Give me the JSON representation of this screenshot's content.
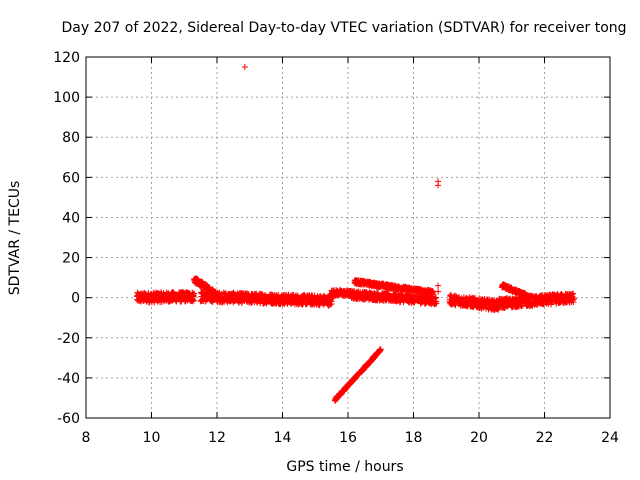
{
  "chart_data": {
    "type": "scatter",
    "title": "Day 207 of 2022, Sidereal Day-to-day VTEC variation (SDTVAR) for receiver tong",
    "xlabel": "GPS time / hours",
    "ylabel": "SDTVAR / TECUs",
    "xlim": [
      8,
      24
    ],
    "ylim": [
      -60,
      120
    ],
    "xticks": [
      8,
      10,
      12,
      14,
      16,
      18,
      20,
      22,
      24
    ],
    "yticks": [
      -60,
      -40,
      -20,
      0,
      20,
      40,
      60,
      80,
      100,
      120
    ],
    "grid": true,
    "marker": "+",
    "color": "#ff0000",
    "segments": [
      {
        "name": "band-1",
        "x_start": 9.55,
        "x_end": 11.3,
        "y_start": 0.0,
        "y_end": 0.5,
        "spread": 2.5
      },
      {
        "name": "spike-1",
        "x_start": 11.3,
        "x_end": 12.0,
        "y_start": 9.0,
        "y_end": 1.5,
        "spread": 1.5
      },
      {
        "name": "band-2",
        "x_start": 11.5,
        "x_end": 15.5,
        "y_start": 0.5,
        "y_end": -1.5,
        "spread": 2.5
      },
      {
        "name": "band-3",
        "x_start": 15.5,
        "x_end": 16.1,
        "y_start": 2.5,
        "y_end": 2.0,
        "spread": 1.5
      },
      {
        "name": "band-4",
        "x_start": 16.1,
        "x_end": 18.7,
        "y_start": 1.5,
        "y_end": -1.5,
        "spread": 2.0
      },
      {
        "name": "upper-arc-1",
        "x_start": 16.2,
        "x_end": 18.6,
        "y_start": 8.0,
        "y_end": 2.5,
        "spread": 1.0
      },
      {
        "name": "band-5",
        "x_start": 19.1,
        "x_end": 20.6,
        "y_start": -1.0,
        "y_end": -4.0,
        "spread": 2.5
      },
      {
        "name": "band-6",
        "x_start": 20.6,
        "x_end": 22.9,
        "y_start": -3.0,
        "y_end": 0.0,
        "spread": 2.5
      },
      {
        "name": "upper-arc-2",
        "x_start": 20.7,
        "x_end": 21.6,
        "y_start": 6.0,
        "y_end": 0.0,
        "spread": 1.0
      },
      {
        "name": "diagonal-1",
        "x_start": 15.6,
        "x_end": 17.0,
        "y_start": -51.0,
        "y_end": -26.0,
        "spread": 0.6
      }
    ],
    "outliers": [
      {
        "x": 12.85,
        "y": 115
      },
      {
        "x": 18.75,
        "y": 58
      },
      {
        "x": 18.75,
        "y": 56
      },
      {
        "x": 18.75,
        "y": 6
      },
      {
        "x": 18.75,
        "y": 3
      }
    ]
  }
}
